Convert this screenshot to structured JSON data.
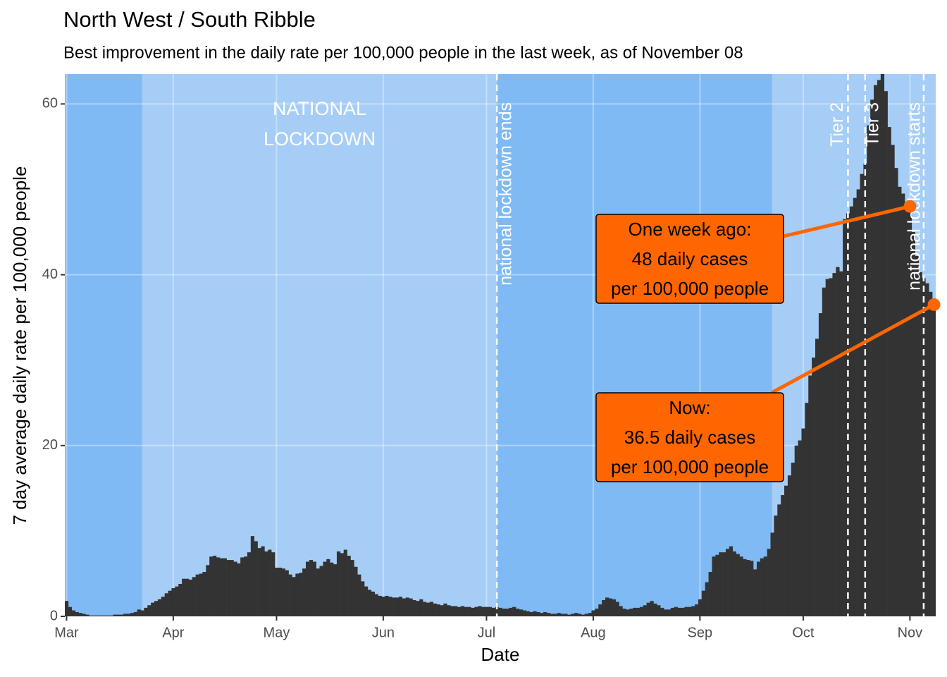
{
  "chart_data": {
    "type": "bar",
    "title": "North West / South Ribble",
    "subtitle": "Best improvement in the daily rate per 100,000 people in the last week, as of November 08",
    "x_label": "Date",
    "y_label": "7 day average daily rate per 100,000 people",
    "color": "#333333",
    "grid": true,
    "xlim": [
      -0.5,
      252.5
    ],
    "ylim": [
      0,
      63.5
    ],
    "yticks": [
      0,
      20,
      40,
      60
    ],
    "xticks": [
      {
        "value": 0,
        "label": "Mar"
      },
      {
        "value": 31,
        "label": "Apr"
      },
      {
        "value": 61,
        "label": "May"
      },
      {
        "value": 92,
        "label": "Jun"
      },
      {
        "value": 122,
        "label": "Jul"
      },
      {
        "value": 153,
        "label": "Aug"
      },
      {
        "value": 184,
        "label": "Sep"
      },
      {
        "value": 214,
        "label": "Oct"
      },
      {
        "value": 245,
        "label": "Nov"
      }
    ],
    "regions": [
      {
        "start": -0.5,
        "end": 22,
        "color": "#80baf5"
      },
      {
        "start": 22,
        "end": 125,
        "color": "#a6cdf6",
        "label": [
          "NATIONAL",
          "LOCKDOWN"
        ]
      },
      {
        "start": 125,
        "end": 205,
        "color": "#80baf5"
      },
      {
        "start": 205,
        "end": 252.5,
        "color": "#a6cdf6"
      }
    ],
    "vlines": [
      {
        "x": 125,
        "label": "national lockdown ends"
      },
      {
        "x": 227,
        "label": "Tier 2"
      },
      {
        "x": 232,
        "label": "Tier 3"
      },
      {
        "x": 249,
        "label": "national lockdown starts"
      }
    ],
    "annotations": [
      {
        "x": 245,
        "y": 48,
        "color": "#ff6600",
        "text": [
          "One week ago:",
          "48 daily cases",
          "per 100,000 people"
        ]
      },
      {
        "x": 252,
        "y": 36.5,
        "color": "#ff6600",
        "text": [
          "Now:",
          "36.5 daily cases",
          "per 100,000 people"
        ]
      }
    ],
    "x": [
      0,
      1,
      2,
      3,
      4,
      5,
      6,
      7,
      8,
      9,
      10,
      11,
      12,
      13,
      14,
      15,
      16,
      17,
      18,
      19,
      20,
      21,
      22,
      23,
      24,
      25,
      26,
      27,
      28,
      29,
      30,
      31,
      32,
      33,
      34,
      35,
      36,
      37,
      38,
      39,
      40,
      41,
      42,
      43,
      44,
      45,
      46,
      47,
      48,
      49,
      50,
      51,
      52,
      53,
      54,
      55,
      56,
      57,
      58,
      59,
      60,
      61,
      62,
      63,
      64,
      65,
      66,
      67,
      68,
      69,
      70,
      71,
      72,
      73,
      74,
      75,
      76,
      77,
      78,
      79,
      80,
      81,
      82,
      83,
      84,
      85,
      86,
      87,
      88,
      89,
      90,
      91,
      92,
      93,
      94,
      95,
      96,
      97,
      98,
      99,
      100,
      101,
      102,
      103,
      104,
      105,
      106,
      107,
      108,
      109,
      110,
      111,
      112,
      113,
      114,
      115,
      116,
      117,
      118,
      119,
      120,
      121,
      122,
      123,
      124,
      125,
      126,
      127,
      128,
      129,
      130,
      131,
      132,
      133,
      134,
      135,
      136,
      137,
      138,
      139,
      140,
      141,
      142,
      143,
      144,
      145,
      146,
      147,
      148,
      149,
      150,
      151,
      152,
      153,
      154,
      155,
      156,
      157,
      158,
      159,
      160,
      161,
      162,
      163,
      164,
      165,
      166,
      167,
      168,
      169,
      170,
      171,
      172,
      173,
      174,
      175,
      176,
      177,
      178,
      179,
      180,
      181,
      182,
      183,
      184,
      185,
      186,
      187,
      188,
      189,
      190,
      191,
      192,
      193,
      194,
      195,
      196,
      197,
      198,
      199,
      200,
      201,
      202,
      203,
      204,
      205,
      206,
      207,
      208,
      209,
      210,
      211,
      212,
      213,
      214,
      215,
      216,
      217,
      218,
      219,
      220,
      221,
      222,
      223,
      224,
      225,
      226,
      227,
      228,
      229,
      230,
      231,
      232,
      233,
      234,
      235,
      236,
      237,
      238,
      239,
      240,
      241,
      242,
      243,
      244,
      245,
      246,
      247,
      248,
      249,
      250,
      251,
      252
    ],
    "values": [
      1.8,
      1.1,
      0.7,
      0.5,
      0.4,
      0.3,
      0.2,
      0.1,
      0.1,
      0.1,
      0.1,
      0.1,
      0.1,
      0.1,
      0.2,
      0.2,
      0.2,
      0.3,
      0.3,
      0.4,
      0.5,
      0.8,
      0.7,
      1.0,
      1.3,
      1.6,
      1.8,
      2.0,
      2.3,
      2.7,
      3.0,
      3.3,
      3.5,
      3.8,
      4.4,
      4.4,
      4.3,
      4.6,
      4.9,
      5.0,
      5.2,
      6.0,
      7.0,
      7.1,
      6.9,
      6.8,
      6.8,
      6.6,
      6.6,
      6.4,
      6.2,
      6.9,
      7.0,
      7.5,
      9.4,
      8.8,
      8.0,
      8.2,
      7.6,
      7.8,
      7.5,
      5.7,
      5.7,
      5.6,
      5.4,
      4.9,
      4.6,
      5.0,
      5.1,
      5.6,
      6.4,
      6.6,
      6.4,
      5.6,
      5.9,
      6.4,
      6.7,
      6.3,
      6.1,
      7.6,
      7.4,
      7.8,
      7.1,
      6.6,
      5.8,
      4.9,
      4.1,
      3.5,
      3.1,
      2.9,
      2.6,
      2.4,
      2.3,
      2.4,
      2.3,
      2.2,
      2.2,
      2.3,
      2.1,
      2.2,
      2.1,
      1.9,
      1.8,
      2.0,
      1.7,
      1.6,
      1.7,
      1.5,
      1.4,
      1.3,
      1.5,
      1.3,
      1.2,
      1.2,
      1.1,
      1.2,
      1.1,
      1.1,
      1.0,
      1.1,
      1.2,
      1.1,
      1.1,
      1.1,
      1.0,
      1.1,
      1.0,
      0.9,
      0.9,
      1.0,
      1.1,
      0.9,
      0.8,
      0.7,
      0.6,
      0.5,
      0.6,
      0.5,
      0.4,
      0.5,
      0.4,
      0.3,
      0.3,
      0.4,
      0.3,
      0.3,
      0.2,
      0.3,
      0.4,
      0.3,
      0.2,
      0.3,
      0.4,
      0.7,
      0.9,
      1.4,
      1.9,
      2.2,
      2.1,
      2.0,
      1.7,
      1.2,
      0.9,
      0.8,
      0.9,
      1.0,
      1.0,
      1.1,
      1.3,
      1.6,
      1.8,
      1.5,
      1.3,
      1.0,
      0.8,
      0.8,
      1.0,
      1.1,
      1.0,
      1.0,
      1.1,
      1.1,
      1.2,
      1.4,
      2.0,
      3.0,
      4.0,
      5.2,
      7.0,
      7.2,
      7.5,
      7.5,
      7.9,
      8.2,
      7.6,
      7.3,
      7.0,
      6.7,
      6.6,
      6.5,
      5.5,
      6.4,
      6.8,
      7.0,
      7.9,
      9.8,
      11.8,
      13.1,
      14.2,
      15.3,
      16.5,
      18.0,
      20.0,
      20.6,
      22.0,
      25.0,
      28.2,
      30.3,
      32.5,
      35.5,
      38.5,
      39.5,
      39.6,
      40.2,
      40.9,
      40.4,
      46.5,
      47.2,
      48.0,
      49.0,
      50.0,
      51.8,
      53.0,
      57.5,
      60.5,
      62.2,
      62.8,
      63.5,
      61.5,
      57.3,
      55.2,
      52.5,
      50.3,
      49.5,
      48.5,
      48.0,
      45.0,
      42.2,
      40.3,
      39.6,
      39.0,
      38.0,
      36.5
    ]
  }
}
